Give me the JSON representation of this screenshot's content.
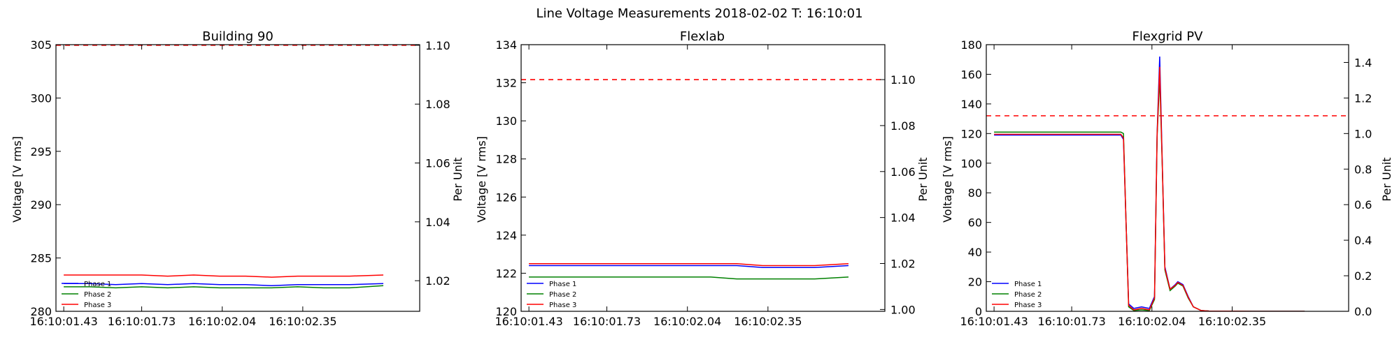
{
  "suptitle": "Line Voltage Measurements 2018-02-02 T: 16:10:01",
  "colors": {
    "phase1": "#0000ff",
    "phase2": "#008000",
    "phase3": "#ff0000",
    "reference": "#ff0000",
    "axes": "#000000"
  },
  "chart_data": [
    {
      "type": "line",
      "title": "Building 90",
      "ylabel": "Voltage [V rms]",
      "ylabel_right": "Per Unit",
      "x_tick_labels": [
        "16:10:01.43",
        "16:10:01.73",
        "16:10:02.04",
        "16:10:02.35"
      ],
      "x_ticks": [
        0,
        0.3,
        0.61,
        0.92
      ],
      "xlim": [
        -0.03,
        1.37
      ],
      "ylim": [
        280,
        305
      ],
      "yticks": [
        280,
        285,
        290,
        295,
        300,
        305
      ],
      "ylim_right": [
        1.0096,
        1.1002
      ],
      "yticks_right": [
        1.02,
        1.04,
        1.06,
        1.08,
        1.1
      ],
      "yticks_right_labels": [
        "1.02",
        "1.04",
        "1.06",
        "1.08",
        "1.10"
      ],
      "reference_line": {
        "axis": "right",
        "value": 1.1,
        "style": "dashed"
      },
      "legend": {
        "position": "lower-left",
        "entries": [
          "Phase 1",
          "Phase 2",
          "Phase 3"
        ]
      },
      "series": [
        {
          "name": "Phase 1",
          "color": "#0000ff",
          "x": [
            0,
            0.1,
            0.2,
            0.3,
            0.4,
            0.5,
            0.6,
            0.7,
            0.8,
            0.9,
            1.0,
            1.1,
            1.23
          ],
          "y": [
            282.6,
            282.6,
            282.5,
            282.6,
            282.5,
            282.6,
            282.5,
            282.5,
            282.4,
            282.5,
            282.5,
            282.5,
            282.6
          ]
        },
        {
          "name": "Phase 2",
          "color": "#008000",
          "x": [
            0,
            0.1,
            0.2,
            0.3,
            0.4,
            0.5,
            0.6,
            0.7,
            0.8,
            0.9,
            1.0,
            1.1,
            1.23
          ],
          "y": [
            282.3,
            282.3,
            282.2,
            282.3,
            282.2,
            282.3,
            282.2,
            282.2,
            282.2,
            282.3,
            282.2,
            282.2,
            282.4
          ]
        },
        {
          "name": "Phase 3",
          "color": "#ff0000",
          "x": [
            0,
            0.1,
            0.2,
            0.3,
            0.4,
            0.5,
            0.6,
            0.7,
            0.8,
            0.9,
            1.0,
            1.1,
            1.23
          ],
          "y": [
            283.4,
            283.4,
            283.4,
            283.4,
            283.3,
            283.4,
            283.3,
            283.3,
            283.2,
            283.3,
            283.3,
            283.3,
            283.4
          ]
        }
      ]
    },
    {
      "type": "line",
      "title": "Flexlab",
      "ylabel": "Voltage [V rms]",
      "ylabel_right": "Per Unit",
      "x_tick_labels": [
        "16:10:01.43",
        "16:10:01.73",
        "16:10:02.04",
        "16:10:02.35"
      ],
      "x_ticks": [
        0,
        0.3,
        0.61,
        0.92
      ],
      "xlim": [
        -0.03,
        1.37
      ],
      "ylim": [
        120,
        134
      ],
      "yticks": [
        120,
        122,
        124,
        126,
        128,
        130,
        132,
        134
      ],
      "ylim_right": [
        0.9992,
        1.1152
      ],
      "yticks_right": [
        1.0,
        1.02,
        1.04,
        1.06,
        1.08,
        1.1
      ],
      "yticks_right_labels": [
        "1.00",
        "1.02",
        "1.04",
        "1.06",
        "1.08",
        "1.10"
      ],
      "reference_line": {
        "axis": "right",
        "value": 1.1,
        "style": "dashed"
      },
      "legend": {
        "position": "lower-left",
        "entries": [
          "Phase 1",
          "Phase 2",
          "Phase 3"
        ]
      },
      "series": [
        {
          "name": "Phase 1",
          "color": "#0000ff",
          "x": [
            0,
            0.1,
            0.2,
            0.3,
            0.4,
            0.5,
            0.6,
            0.7,
            0.8,
            0.9,
            1.0,
            1.1,
            1.23
          ],
          "y": [
            122.4,
            122.4,
            122.4,
            122.4,
            122.4,
            122.4,
            122.4,
            122.4,
            122.4,
            122.3,
            122.3,
            122.3,
            122.4
          ]
        },
        {
          "name": "Phase 2",
          "color": "#008000",
          "x": [
            0,
            0.1,
            0.2,
            0.3,
            0.4,
            0.5,
            0.6,
            0.7,
            0.8,
            0.9,
            1.0,
            1.1,
            1.23
          ],
          "y": [
            121.8,
            121.8,
            121.8,
            121.8,
            121.8,
            121.8,
            121.8,
            121.8,
            121.7,
            121.7,
            121.7,
            121.7,
            121.8
          ]
        },
        {
          "name": "Phase 3",
          "color": "#ff0000",
          "x": [
            0,
            0.1,
            0.2,
            0.3,
            0.4,
            0.5,
            0.6,
            0.7,
            0.8,
            0.9,
            1.0,
            1.1,
            1.23
          ],
          "y": [
            122.5,
            122.5,
            122.5,
            122.5,
            122.5,
            122.5,
            122.5,
            122.5,
            122.5,
            122.4,
            122.4,
            122.4,
            122.5
          ]
        }
      ]
    },
    {
      "type": "line",
      "title": "Flexgrid PV",
      "ylabel": "Voltage [V rms]",
      "ylabel_right": "Per Unit",
      "x_tick_labels": [
        "16:10:01.43",
        "16:10:01.73",
        "16:10:02.04",
        "16:10:02.35"
      ],
      "x_ticks": [
        0,
        0.3,
        0.61,
        0.92
      ],
      "xlim": [
        -0.03,
        1.37
      ],
      "ylim": [
        0,
        180
      ],
      "yticks": [
        0,
        20,
        40,
        60,
        80,
        100,
        120,
        140,
        160,
        180
      ],
      "ylim_right": [
        0,
        1.5
      ],
      "yticks_right": [
        0,
        0.2,
        0.4,
        0.6,
        0.8,
        1.0,
        1.2,
        1.4
      ],
      "yticks_right_labels": [
        "0.0",
        "0.2",
        "0.4",
        "0.6",
        "0.8",
        "1.0",
        "1.2",
        "1.4"
      ],
      "reference_line": {
        "axis": "right",
        "value": 1.1,
        "style": "dashed"
      },
      "legend": {
        "position": "lower-left",
        "entries": [
          "Phase 1",
          "Phase 2",
          "Phase 3"
        ]
      },
      "series": [
        {
          "name": "Phase 1",
          "color": "#0000ff",
          "x": [
            0,
            0.2,
            0.4,
            0.49,
            0.5,
            0.51,
            0.52,
            0.54,
            0.57,
            0.6,
            0.62,
            0.63,
            0.64,
            0.65,
            0.66,
            0.68,
            0.7,
            0.71,
            0.73,
            0.75,
            0.77,
            0.8,
            0.83,
            1.0,
            1.2
          ],
          "y": [
            119,
            119,
            119,
            119,
            116,
            60,
            5,
            2,
            3,
            2,
            10,
            120,
            172,
            100,
            30,
            15,
            18,
            20,
            18,
            10,
            3,
            0.5,
            0.2,
            0,
            0
          ]
        },
        {
          "name": "Phase 2",
          "color": "#008000",
          "x": [
            0,
            0.2,
            0.4,
            0.49,
            0.5,
            0.51,
            0.52,
            0.54,
            0.57,
            0.6,
            0.62,
            0.63,
            0.64,
            0.65,
            0.66,
            0.68,
            0.7,
            0.71,
            0.73,
            0.75,
            0.77,
            0.8,
            0.83,
            1.0,
            1.2
          ],
          "y": [
            121,
            121,
            121,
            121,
            120,
            60,
            3,
            0.5,
            1,
            0.5,
            8,
            118,
            158,
            98,
            28,
            14,
            17,
            19,
            17,
            9,
            3,
            0.5,
            0.2,
            0,
            0
          ]
        },
        {
          "name": "Phase 3",
          "color": "#ff0000",
          "x": [
            0,
            0.2,
            0.4,
            0.49,
            0.5,
            0.51,
            0.52,
            0.54,
            0.57,
            0.6,
            0.62,
            0.63,
            0.64,
            0.65,
            0.66,
            0.68,
            0.7,
            0.71,
            0.73,
            0.75,
            0.77,
            0.8,
            0.83,
            1.0,
            1.2
          ],
          "y": [
            119.5,
            119.5,
            119.5,
            119.5,
            117,
            60,
            4,
            1,
            2,
            1,
            9,
            119,
            165,
            99,
            29,
            15,
            17.5,
            19.5,
            17.5,
            9.5,
            3,
            0.5,
            0.2,
            0,
            0
          ]
        }
      ]
    }
  ]
}
